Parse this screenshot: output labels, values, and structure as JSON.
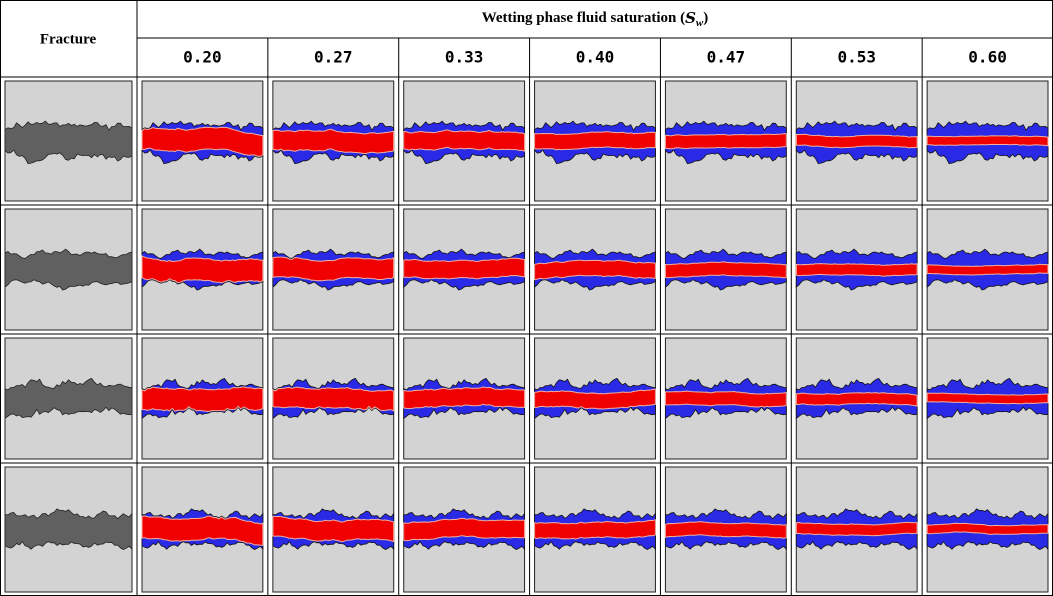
{
  "header": {
    "fracture_label": "Fracture",
    "group_label": {
      "text": "Wetting phase fluid saturation (",
      "symbol": "S",
      "subscript": "w",
      "close": ")"
    },
    "saturations": [
      "0.20",
      "0.27",
      "0.33",
      "0.40",
      "0.47",
      "0.53",
      "0.60"
    ]
  }
}
